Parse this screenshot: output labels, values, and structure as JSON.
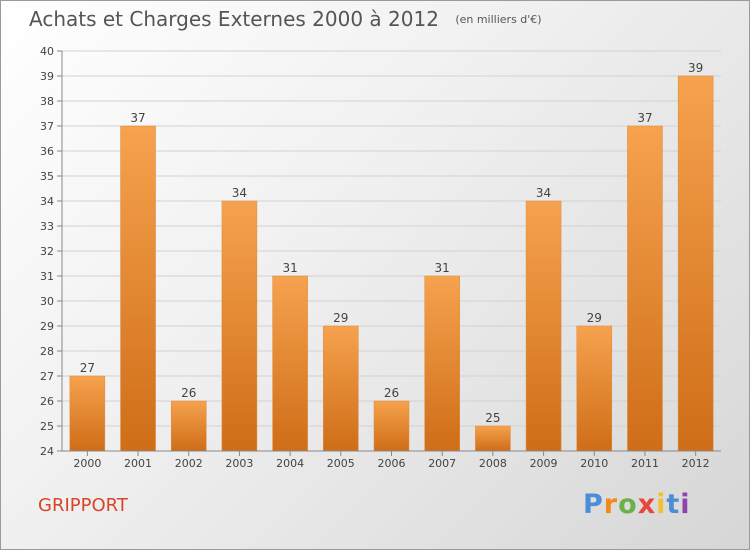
{
  "header": {
    "title": "Achats et Charges Externes 2000 à 2012",
    "subtitle": "(en milliers d'€)"
  },
  "place_name": "GRIPPORT",
  "logo": {
    "text": "Proxiti",
    "letter_colors": [
      "#4a8fd6",
      "#f08a1c",
      "#6ab04c",
      "#e8453c",
      "#f2c12e",
      "#4a8fd6",
      "#8e44ad"
    ]
  },
  "colors": {
    "bar_top": "#f6a24e",
    "bar_bottom": "#cf6d18",
    "grid": "#d2d2d2",
    "axis": "#888888"
  },
  "chart_data": {
    "type": "bar",
    "title": "Achats et Charges Externes 2000 à 2012",
    "subtitle": "(en milliers d'€)",
    "categories": [
      "2000",
      "2001",
      "2002",
      "2003",
      "2004",
      "2005",
      "2006",
      "2007",
      "2008",
      "2009",
      "2010",
      "2011",
      "2012"
    ],
    "values": [
      27,
      37,
      26,
      34,
      31,
      29,
      26,
      31,
      25,
      34,
      29,
      37,
      39
    ],
    "ylim": [
      24,
      40
    ],
    "yticks": [
      24,
      25,
      26,
      27,
      28,
      29,
      30,
      31,
      32,
      33,
      34,
      35,
      36,
      37,
      38,
      39,
      40
    ],
    "grid": true,
    "data_labels": true
  }
}
